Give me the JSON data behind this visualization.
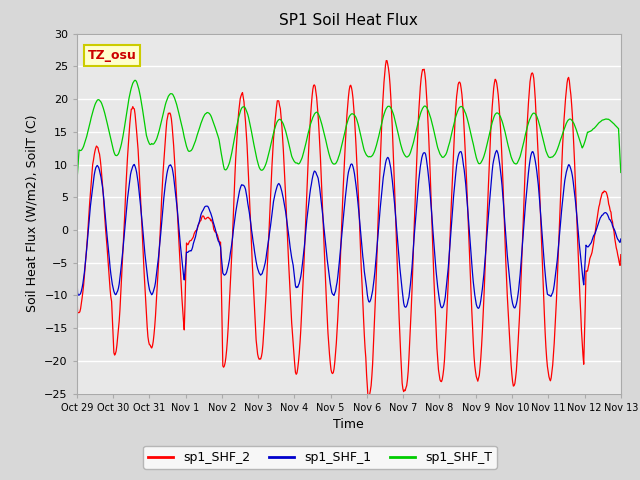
{
  "title": "SP1 Soil Heat Flux",
  "ylabel": "Soil Heat Flux (W/m2), SoilT (C)",
  "xlabel": "Time",
  "ylim": [
    -25,
    30
  ],
  "yticks": [
    -25,
    -20,
    -15,
    -10,
    -5,
    0,
    5,
    10,
    15,
    20,
    25,
    30
  ],
  "xtick_labels": [
    "Oct 29",
    "Oct 30",
    "Oct 31",
    "Nov 1",
    "Nov 2",
    "Nov 3",
    "Nov 4",
    "Nov 5",
    "Nov 6",
    "Nov 7",
    "Nov 8",
    "Nov 9",
    "Nov 10",
    "Nov 11",
    "Nov 12",
    "Nov 13"
  ],
  "legend_labels": [
    "sp1_SHF_2",
    "sp1_SHF_1",
    "sp1_SHF_T"
  ],
  "legend_colors": [
    "#ff0000",
    "#0000cc",
    "#00cc00"
  ],
  "annotation_text": "TZ_osu",
  "annotation_color": "#cc0000",
  "annotation_bg": "#ffffcc",
  "annotation_border": "#cccc00",
  "bg_color": "#d8d8d8",
  "plot_bg_color": "#e8e8e8",
  "line_colors": [
    "#ff0000",
    "#0000cc",
    "#00cc00"
  ],
  "title_fontsize": 11,
  "axis_fontsize": 9,
  "tick_fontsize": 8,
  "shf2_amps": [
    13,
    19,
    18,
    2,
    21,
    20,
    22,
    22,
    26,
    25,
    23,
    23,
    24,
    23,
    6
  ],
  "shf1_amps": [
    10,
    10,
    10,
    3.5,
    7,
    7,
    9,
    10,
    11,
    12,
    12,
    12,
    12,
    10,
    2.5
  ],
  "shfT_means": [
    16,
    17,
    17,
    15,
    14,
    13,
    14,
    14,
    15,
    15,
    15,
    14,
    14,
    14,
    16
  ],
  "shfT_amps": [
    4,
    6,
    4,
    3,
    5,
    4,
    4,
    4,
    4,
    4,
    4,
    4,
    4,
    3,
    1
  ],
  "n_days": 15
}
